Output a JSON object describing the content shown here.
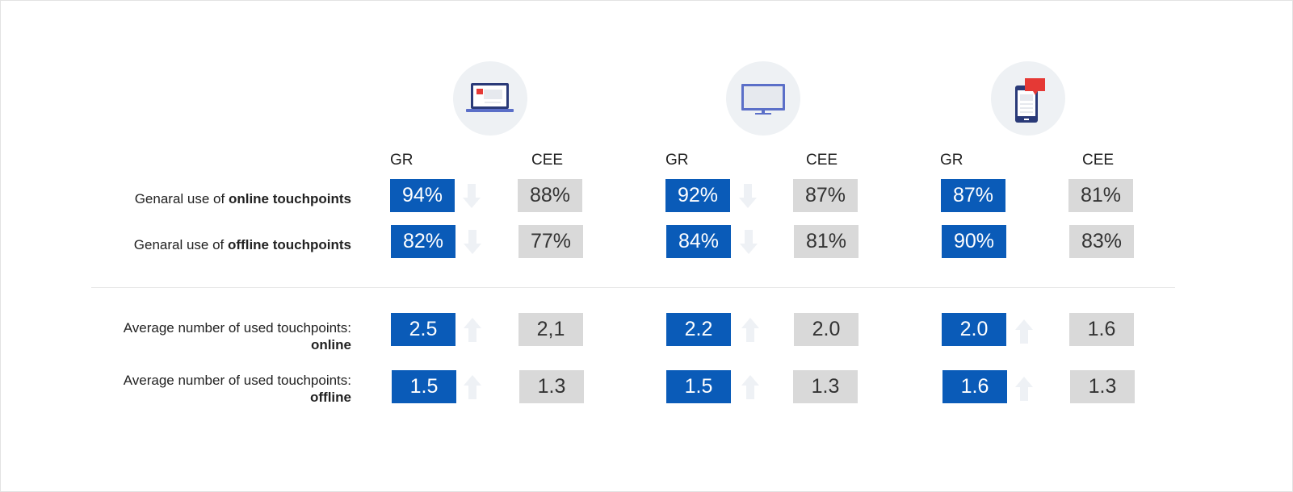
{
  "chart_data": {
    "type": "table",
    "groups": [
      {
        "icon": "laptop-icon"
      },
      {
        "icon": "monitor-icon"
      },
      {
        "icon": "smartphone-chat-icon"
      }
    ],
    "columns": [
      "GR",
      "CEE"
    ],
    "rows": [
      {
        "label_normal": "Genaral use of ",
        "label_bold": "online touchpoints",
        "values": [
          [
            "94%",
            "88%"
          ],
          [
            "92%",
            "87%"
          ],
          [
            "87%",
            "81%"
          ]
        ],
        "trend": [
          "down",
          "down",
          "none"
        ]
      },
      {
        "label_normal": "Genaral use of ",
        "label_bold": "offline touchpoints",
        "values": [
          [
            "82%",
            "77%"
          ],
          [
            "84%",
            "81%"
          ],
          [
            "90%",
            "83%"
          ]
        ],
        "trend": [
          "down",
          "down",
          "none"
        ]
      },
      {
        "label_normal": "Average number of used touchpoints:",
        "label_bold": "online",
        "values": [
          [
            "2.5",
            "2,1"
          ],
          [
            "2.2",
            "2.0"
          ],
          [
            "2.0",
            "1.6"
          ]
        ],
        "trend": [
          "up",
          "up",
          "up"
        ]
      },
      {
        "label_normal": "Average number of used touchpoints:",
        "label_bold": "offline",
        "values": [
          [
            "1.5",
            "1.3"
          ],
          [
            "1.5",
            "1.3"
          ],
          [
            "1.6",
            "1.3"
          ]
        ],
        "trend": [
          "up",
          "up",
          "up"
        ]
      }
    ],
    "colors": {
      "gr_box": "#0a5bb8",
      "cee_box": "#d9d9d9",
      "arrow": "#eef1f5"
    }
  }
}
